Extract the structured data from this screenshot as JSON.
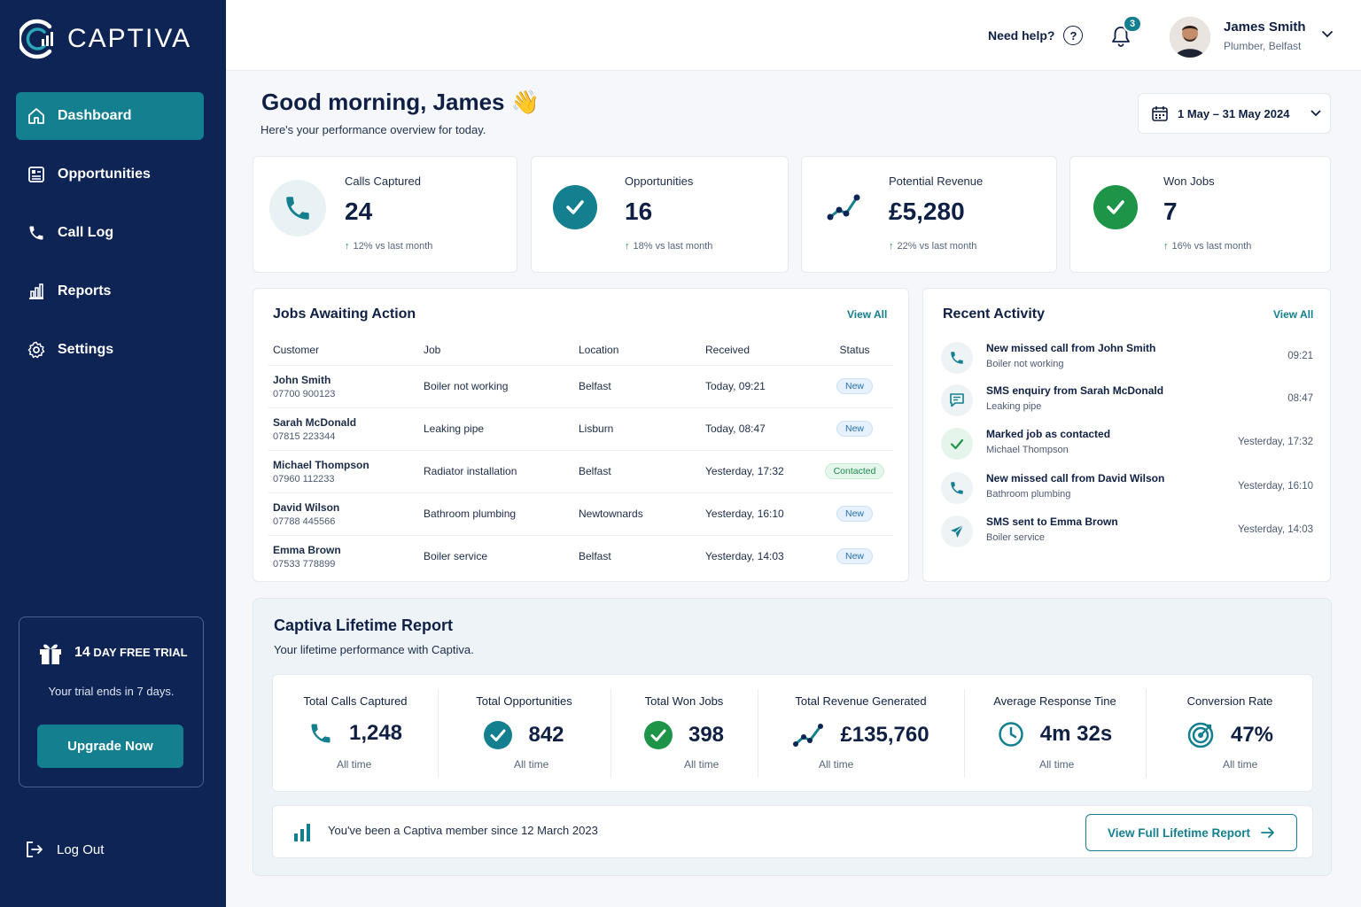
{
  "brand": {
    "name": "CAPTIVA",
    "accent": "#137f8f",
    "sidebar_bg": "#0d2455"
  },
  "sidebar": {
    "items": [
      {
        "label": "Dashboard",
        "icon": "home-icon",
        "active": true
      },
      {
        "label": "Opportunities",
        "icon": "list-icon",
        "active": false
      },
      {
        "label": "Call Log",
        "icon": "phone-icon",
        "active": false
      },
      {
        "label": "Reports",
        "icon": "chart-icon",
        "active": false
      },
      {
        "label": "Settings",
        "icon": "gear-icon",
        "active": false
      }
    ],
    "trial": {
      "days": "14",
      "title": "DAY FREE TRIAL",
      "subtitle": "Your trial ends in 7 days.",
      "button": "Upgrade Now"
    },
    "logout": "Log Out"
  },
  "topbar": {
    "help": "Need help?",
    "notifications": "3",
    "user_name": "James Smith",
    "user_role": "Plumber, Belfast"
  },
  "greeting": {
    "title": "Good morning, James",
    "emoji": "👋",
    "subtitle": "Here's your performance overview for today.",
    "date_range": "1 May – 31 May 2024"
  },
  "stats": [
    {
      "label": "Calls Captured",
      "value": "24",
      "delta": "12% vs last month"
    },
    {
      "label": "Opportunities",
      "value": "16",
      "delta": "18% vs last month"
    },
    {
      "label": "Potential Revenue",
      "value": "£5,280",
      "delta": "22% vs last month"
    },
    {
      "label": "Won Jobs",
      "value": "7",
      "delta": "16% vs last month"
    }
  ],
  "jobs": {
    "title": "Jobs Awaiting Action",
    "view_all": "View All",
    "columns": [
      "Customer",
      "Job",
      "Location",
      "Received",
      "Status"
    ],
    "rows": [
      {
        "name": "John Smith",
        "phone": "07700 900123",
        "job": "Boiler not working",
        "location": "Belfast",
        "received": "Today, 09:21",
        "status": "New"
      },
      {
        "name": "Sarah McDonald",
        "phone": "07815 223344",
        "job": "Leaking pipe",
        "location": "Lisburn",
        "received": "Today, 08:47",
        "status": "New"
      },
      {
        "name": "Michael Thompson",
        "phone": "07960 112233",
        "job": "Radiator installation",
        "location": "Belfast",
        "received": "Yesterday, 17:32",
        "status": "Contacted"
      },
      {
        "name": "David Wilson",
        "phone": "07788 445566",
        "job": "Bathroom plumbing",
        "location": "Newtownards",
        "received": "Yesterday, 16:10",
        "status": "New"
      },
      {
        "name": "Emma Brown",
        "phone": "07533 778899",
        "job": "Boiler service",
        "location": "Belfast",
        "received": "Yesterday, 14:03",
        "status": "New"
      }
    ]
  },
  "activity": {
    "title": "Recent Activity",
    "view_all": "View All",
    "items": [
      {
        "title": "New missed call from John Smith",
        "sub": "Boiler not working",
        "time": "09:21",
        "icon": "phone-icon"
      },
      {
        "title": "SMS enquiry from Sarah McDonald",
        "sub": "Leaking pipe",
        "time": "08:47",
        "icon": "message-icon"
      },
      {
        "title": "Marked job as contacted",
        "sub": "Michael Thompson",
        "time": "Yesterday, 17:32",
        "icon": "check-icon"
      },
      {
        "title": "New missed call from David Wilson",
        "sub": "Bathroom plumbing",
        "time": "Yesterday, 16:10",
        "icon": "phone-icon"
      },
      {
        "title": "SMS sent to Emma Brown",
        "sub": "Boiler service",
        "time": "Yesterday, 14:03",
        "icon": "send-icon"
      }
    ]
  },
  "lifetime": {
    "title": "Captiva Lifetime Report",
    "subtitle": "Your lifetime performance with Captiva.",
    "stats": [
      {
        "label": "Total Calls Captured",
        "value": "1,248",
        "sub": "All time",
        "icon": "phone-icon"
      },
      {
        "label": "Total Opportunities",
        "value": "842",
        "sub": "All time",
        "icon": "check-circle-icon"
      },
      {
        "label": "Total Won Jobs",
        "value": "398",
        "sub": "All time",
        "icon": "check-circle-icon"
      },
      {
        "label": "Total Revenue Generated",
        "value": "£135,760",
        "sub": "All time",
        "icon": "trend-icon"
      },
      {
        "label": "Average Response Tine",
        "value": "4m 32s",
        "sub": "All time",
        "icon": "clock-icon"
      },
      {
        "label": "Conversion Rate",
        "value": "47%",
        "sub": "All time",
        "icon": "target-icon"
      }
    ],
    "member_text": "You've been a Captiva member since 12 March 2023",
    "full_report_button": "View Full Lifetime Report"
  }
}
